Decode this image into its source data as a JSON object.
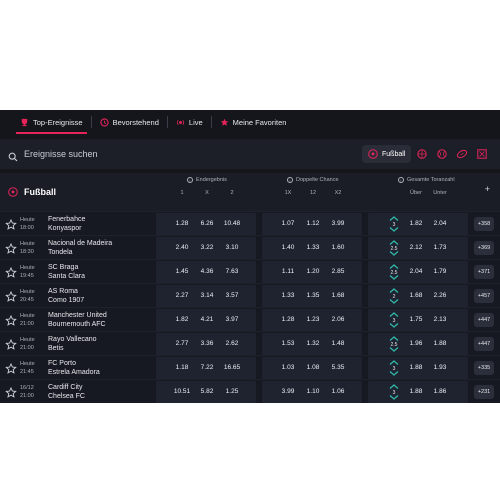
{
  "nav": {
    "items": [
      {
        "label": "Top-Ereignisse",
        "icon": "trophy-icon",
        "active": true
      },
      {
        "label": "Bevorstehend",
        "icon": "clock-icon",
        "active": false
      },
      {
        "label": "Live",
        "icon": "live-dot-icon",
        "active": false
      },
      {
        "label": "Meine Favoriten",
        "icon": "star-icon",
        "active": false
      }
    ]
  },
  "search": {
    "placeholder": "Ereignisse suchen",
    "sport_chip": "Fußball",
    "sport_icons": [
      "basketball-icon",
      "tennis-icon",
      "american-football-icon",
      "hockey-icon"
    ]
  },
  "header": {
    "league": "Fußball",
    "markets": [
      {
        "title": "Endergebnis",
        "cols": [
          "1",
          "X",
          "2"
        ]
      },
      {
        "title": "Doppelte Chance",
        "cols": [
          "1X",
          "12",
          "X2"
        ]
      },
      {
        "title": "Gesamte Toranzahl",
        "cols": [
          "Über",
          "Unter"
        ]
      }
    ],
    "plus": "+"
  },
  "matches": [
    {
      "day": "Heute",
      "time": "18:00",
      "home": "Fenerbahce",
      "away": "Konyaspor",
      "o1": "1.28",
      "ox": "6.26",
      "o2": "10.48",
      "dc1x": "1.07",
      "dc12": "1.12",
      "dcx2": "3.99",
      "line": "3",
      "over": "1.82",
      "under": "2.04",
      "more": "+358"
    },
    {
      "day": "Heute",
      "time": "18:30",
      "home": "Nacional de Madeira",
      "away": "Tondela",
      "o1": "2.40",
      "ox": "3.22",
      "o2": "3.10",
      "dc1x": "1.40",
      "dc12": "1.33",
      "dcx2": "1.60",
      "line": "2.5",
      "over": "2.12",
      "under": "1.73",
      "more": "+369"
    },
    {
      "day": "Heute",
      "time": "19:45",
      "home": "SC Braga",
      "away": "Santa Clara",
      "o1": "1.45",
      "ox": "4.36",
      "o2": "7.63",
      "dc1x": "1.11",
      "dc12": "1.20",
      "dcx2": "2.85",
      "line": "2.5",
      "over": "2.04",
      "under": "1.79",
      "more": "+371"
    },
    {
      "day": "Heute",
      "time": "20:45",
      "home": "AS Roma",
      "away": "Como 1907",
      "o1": "2.27",
      "ox": "3.14",
      "o2": "3.57",
      "dc1x": "1.33",
      "dc12": "1.35",
      "dcx2": "1.68",
      "line": "2",
      "over": "1.68",
      "under": "2.26",
      "more": "+457"
    },
    {
      "day": "Heute",
      "time": "21:00",
      "home": "Manchester United",
      "away": "Bournemouth AFC",
      "o1": "1.82",
      "ox": "4.21",
      "o2": "3.97",
      "dc1x": "1.28",
      "dc12": "1.23",
      "dcx2": "2.06",
      "line": "3",
      "over": "1.75",
      "under": "2.13",
      "more": "+447"
    },
    {
      "day": "Heute",
      "time": "21:00",
      "home": "Rayo Vallecano",
      "away": "Betis",
      "o1": "2.77",
      "ox": "3.36",
      "o2": "2.62",
      "dc1x": "1.53",
      "dc12": "1.32",
      "dcx2": "1.48",
      "line": "2.5",
      "over": "1.96",
      "under": "1.88",
      "more": "+447"
    },
    {
      "day": "Heute",
      "time": "21:45",
      "home": "FC Porto",
      "away": "Estrela Amadora",
      "o1": "1.18",
      "ox": "7.22",
      "o2": "16.65",
      "dc1x": "1.03",
      "dc12": "1.08",
      "dcx2": "5.35",
      "line": "3",
      "over": "1.88",
      "under": "1.93",
      "more": "+335"
    },
    {
      "day": "16/12",
      "time": "21:00",
      "home": "Cardiff City",
      "away": "Chelsea FC",
      "o1": "10.51",
      "ox": "5.82",
      "o2": "1.25",
      "dc1x": "3.99",
      "dc12": "1.10",
      "dcx2": "1.06",
      "line": "3",
      "over": "1.88",
      "under": "1.86",
      "more": "+231"
    }
  ],
  "colors": {
    "accent": "#e6245a",
    "background": "#14161c",
    "odds_cell": "#1f2330",
    "line_icon": "#2fb7a8"
  }
}
